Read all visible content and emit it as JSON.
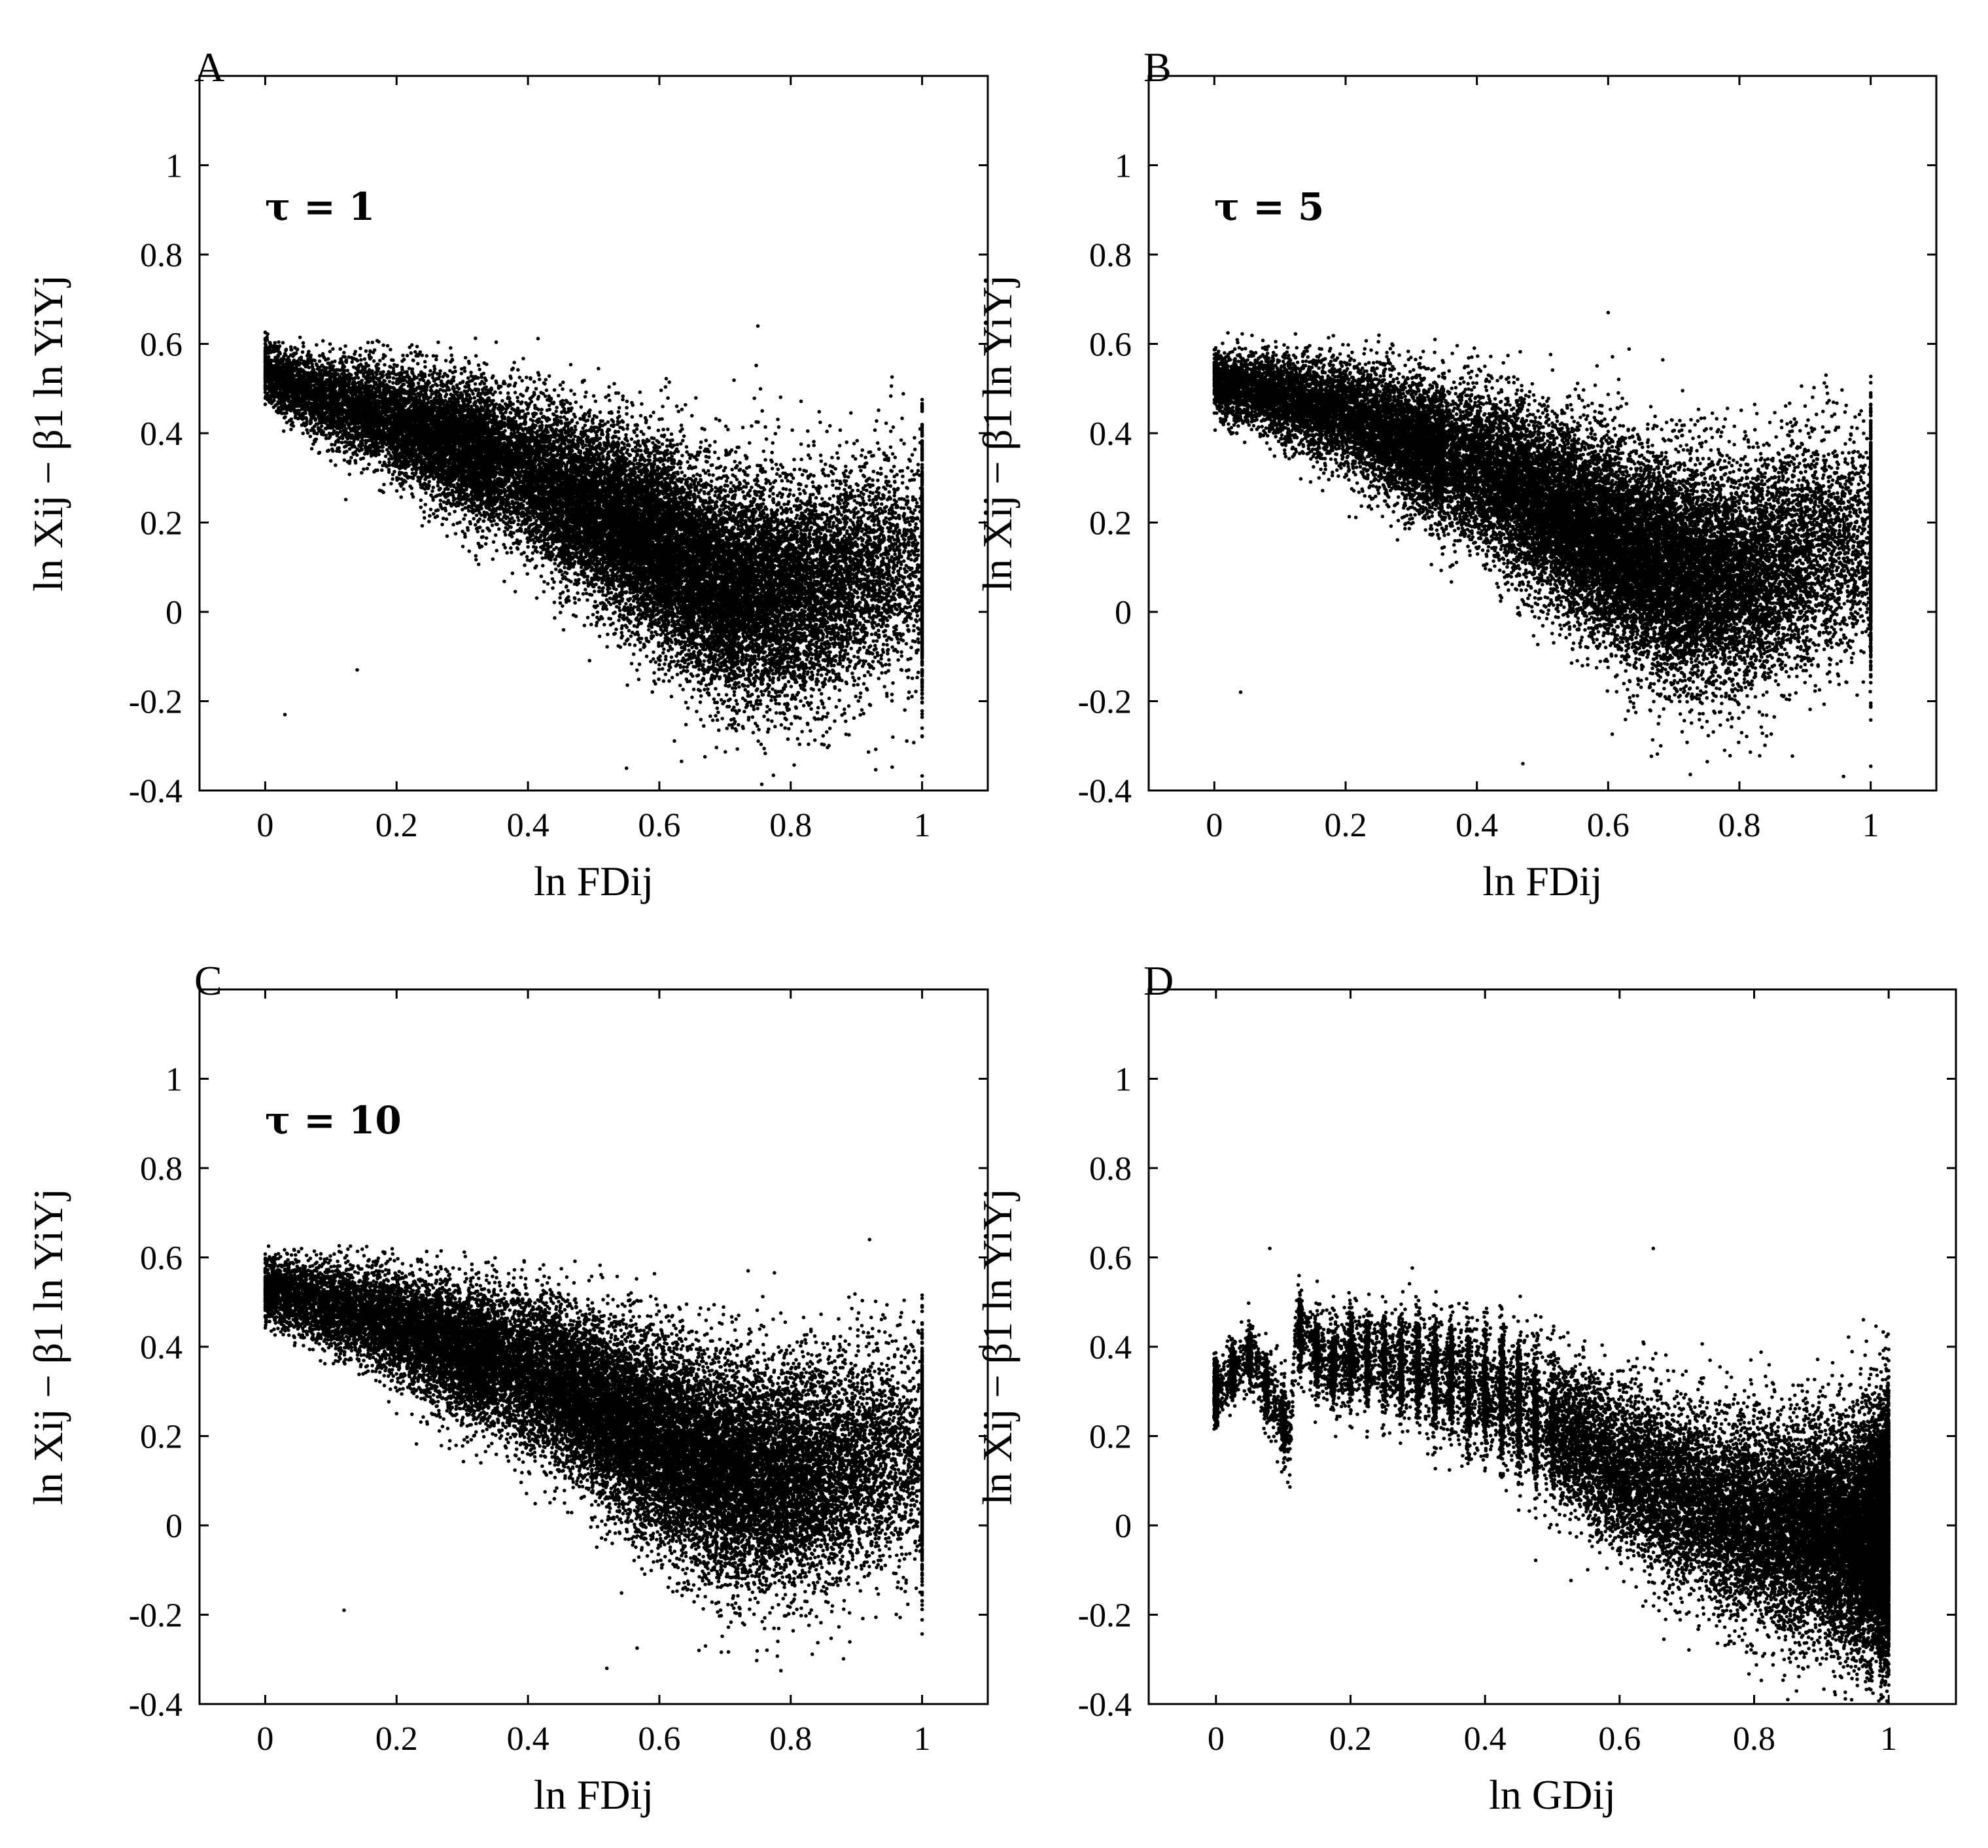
{
  "chart_data": [
    {
      "type": "scatter",
      "panel_label": "A",
      "annotation": "τ = 1",
      "xlabel": "ln FDij",
      "ylabel": "ln Xij − β1 ln YiYj",
      "xlim": [
        -0.1,
        1.1
      ],
      "ylim": [
        -0.4,
        1.2
      ],
      "xticks": [
        0,
        0.2,
        0.4,
        0.6,
        0.8,
        1
      ],
      "xtick_labels": [
        "0",
        "0.2",
        "0.4",
        "0.6",
        "0.8",
        "1"
      ],
      "yticks": [
        -0.4,
        -0.2,
        0,
        0.2,
        0.4,
        0.6,
        0.8,
        1
      ],
      "ytick_labels": [
        "-0.4",
        "-0.2",
        "0",
        "0.2",
        "0.4",
        "0.6",
        "0.8",
        "1"
      ],
      "series": [
        {
          "color": "#000000",
          "points": [
            [
              0.0,
              0.55
            ],
            [
              0.02,
              0.52
            ],
            [
              0.05,
              0.5
            ],
            [
              0.1,
              0.47
            ],
            [
              0.15,
              0.45
            ],
            [
              0.2,
              0.43
            ],
            [
              0.25,
              0.4
            ],
            [
              0.3,
              0.37
            ],
            [
              0.35,
              0.34
            ],
            [
              0.4,
              0.31
            ],
            [
              0.45,
              0.27
            ],
            [
              0.5,
              0.23
            ],
            [
              0.55,
              0.19
            ],
            [
              0.6,
              0.14
            ],
            [
              0.65,
              0.1
            ],
            [
              0.7,
              0.06
            ],
            [
              0.75,
              0.05
            ],
            [
              0.8,
              0.04
            ],
            [
              0.85,
              0.05
            ],
            [
              0.9,
              0.08
            ],
            [
              0.95,
              0.1
            ],
            [
              1.0,
              0.1
            ],
            [
              0.03,
              -0.23
            ],
            [
              0.14,
              -0.13
            ],
            [
              0.55,
              -0.35
            ],
            [
              0.75,
              0.64
            ]
          ]
        }
      ]
    },
    {
      "type": "scatter",
      "panel_label": "B",
      "annotation": "τ = 5",
      "xlabel": "ln FDij",
      "ylabel": "ln Xij − β1 ln YiYj",
      "xlim": [
        -0.1,
        1.1
      ],
      "ylim": [
        -0.4,
        1.2
      ],
      "xticks": [
        0,
        0.2,
        0.4,
        0.6,
        0.8,
        1
      ],
      "xtick_labels": [
        "0",
        "0.2",
        "0.4",
        "0.6",
        "0.8",
        "1"
      ],
      "yticks": [
        -0.4,
        -0.2,
        0,
        0.2,
        0.4,
        0.6,
        0.8,
        1
      ],
      "ytick_labels": [
        "-0.4",
        "-0.2",
        "0",
        "0.2",
        "0.4",
        "0.6",
        "0.8",
        "1"
      ],
      "series": [
        {
          "color": "#000000",
          "points": [
            [
              0.0,
              0.52
            ],
            [
              0.02,
              0.5
            ],
            [
              0.05,
              0.5
            ],
            [
              0.1,
              0.48
            ],
            [
              0.15,
              0.46
            ],
            [
              0.2,
              0.44
            ],
            [
              0.25,
              0.41
            ],
            [
              0.3,
              0.38
            ],
            [
              0.35,
              0.35
            ],
            [
              0.4,
              0.32
            ],
            [
              0.45,
              0.28
            ],
            [
              0.5,
              0.24
            ],
            [
              0.55,
              0.2
            ],
            [
              0.6,
              0.16
            ],
            [
              0.65,
              0.12
            ],
            [
              0.7,
              0.09
            ],
            [
              0.75,
              0.08
            ],
            [
              0.8,
              0.08
            ],
            [
              0.85,
              0.1
            ],
            [
              0.9,
              0.13
            ],
            [
              0.95,
              0.15
            ],
            [
              1.0,
              0.15
            ],
            [
              0.04,
              -0.18
            ],
            [
              0.47,
              -0.34
            ],
            [
              0.6,
              0.67
            ]
          ]
        }
      ]
    },
    {
      "type": "scatter",
      "panel_label": "C",
      "annotation": "τ = 10",
      "xlabel": "ln FDij",
      "ylabel": "ln Xij − β1 ln YiYj",
      "xlim": [
        -0.1,
        1.1
      ],
      "ylim": [
        -0.4,
        1.2
      ],
      "xticks": [
        0,
        0.2,
        0.4,
        0.6,
        0.8,
        1
      ],
      "xtick_labels": [
        "0",
        "0.2",
        "0.4",
        "0.6",
        "0.8",
        "1"
      ],
      "yticks": [
        -0.4,
        -0.2,
        0,
        0.2,
        0.4,
        0.6,
        0.8,
        1
      ],
      "ytick_labels": [
        "-0.4",
        "-0.2",
        "0",
        "0.2",
        "0.4",
        "0.6",
        "0.8",
        "1"
      ],
      "series": [
        {
          "color": "#000000",
          "points": [
            [
              0.0,
              0.53
            ],
            [
              0.02,
              0.52
            ],
            [
              0.05,
              0.51
            ],
            [
              0.1,
              0.49
            ],
            [
              0.15,
              0.47
            ],
            [
              0.2,
              0.45
            ],
            [
              0.25,
              0.42
            ],
            [
              0.3,
              0.39
            ],
            [
              0.35,
              0.37
            ],
            [
              0.4,
              0.34
            ],
            [
              0.45,
              0.31
            ],
            [
              0.5,
              0.27
            ],
            [
              0.55,
              0.23
            ],
            [
              0.6,
              0.19
            ],
            [
              0.65,
              0.15
            ],
            [
              0.7,
              0.12
            ],
            [
              0.75,
              0.11
            ],
            [
              0.8,
              0.1
            ],
            [
              0.85,
              0.12
            ],
            [
              0.9,
              0.14
            ],
            [
              0.95,
              0.16
            ],
            [
              1.0,
              0.15
            ],
            [
              0.12,
              -0.19
            ],
            [
              0.52,
              -0.32
            ],
            [
              0.92,
              0.64
            ]
          ]
        }
      ]
    },
    {
      "type": "scatter",
      "panel_label": "D",
      "annotation": "",
      "xlabel": "ln GDij",
      "ylabel": "ln Xij − β1 ln YiYj",
      "xlim": [
        -0.1,
        1.1
      ],
      "ylim": [
        -0.4,
        1.2
      ],
      "xticks": [
        0,
        0.2,
        0.4,
        0.6,
        0.8,
        1
      ],
      "xtick_labels": [
        "0",
        "0.2",
        "0.4",
        "0.6",
        "0.8",
        "1"
      ],
      "yticks": [
        -0.4,
        -0.2,
        0,
        0.2,
        0.4,
        0.6,
        0.8,
        1
      ],
      "ytick_labels": [
        "-0.4",
        "-0.2",
        "0",
        "0.2",
        "0.4",
        "0.6",
        "0.8",
        "1"
      ],
      "series": [
        {
          "color": "#000000",
          "points": [
            [
              0.0,
              0.3
            ],
            [
              0.05,
              0.38
            ],
            [
              0.08,
              0.3
            ],
            [
              0.11,
              0.2
            ],
            [
              0.12,
              0.44
            ],
            [
              0.17,
              0.35
            ],
            [
              0.2,
              0.38
            ],
            [
              0.25,
              0.36
            ],
            [
              0.3,
              0.35
            ],
            [
              0.35,
              0.33
            ],
            [
              0.4,
              0.3
            ],
            [
              0.45,
              0.27
            ],
            [
              0.5,
              0.22
            ],
            [
              0.55,
              0.17
            ],
            [
              0.6,
              0.13
            ],
            [
              0.65,
              0.09
            ],
            [
              0.7,
              0.06
            ],
            [
              0.75,
              0.03
            ],
            [
              0.8,
              0.01
            ],
            [
              0.85,
              0.0
            ],
            [
              0.9,
              -0.02
            ],
            [
              0.95,
              -0.03
            ],
            [
              1.0,
              -0.02
            ],
            [
              0.08,
              0.62
            ],
            [
              0.65,
              0.62
            ],
            [
              0.85,
              -0.39
            ]
          ]
        }
      ]
    }
  ]
}
